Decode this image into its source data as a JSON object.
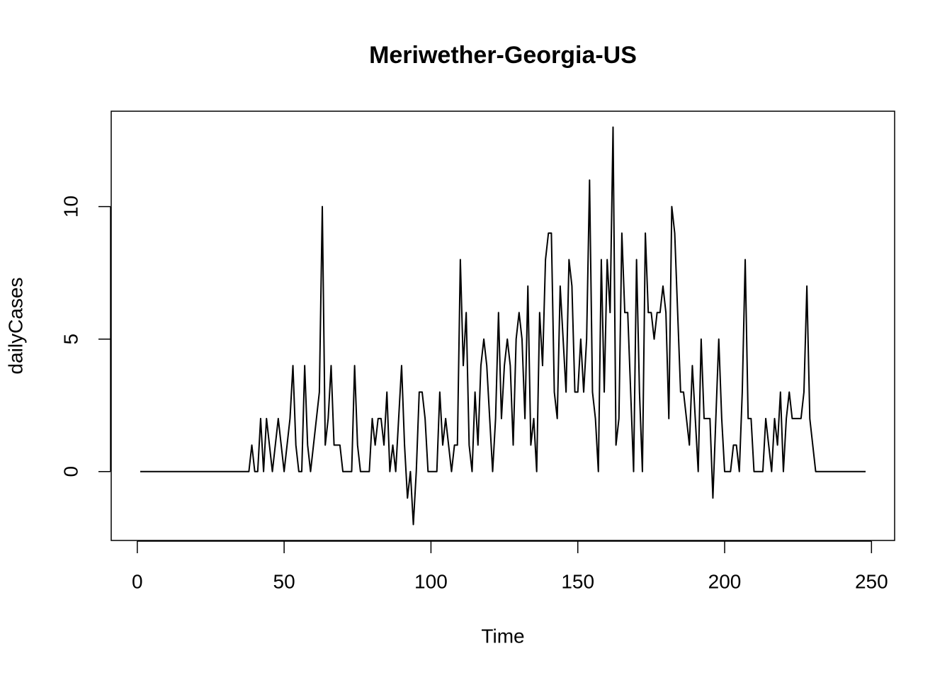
{
  "chart_data": {
    "type": "line",
    "title": "Meriwether-Georgia-US",
    "x_label": "Time",
    "y_label": "dailyCases",
    "x": [
      1,
      2,
      3,
      4,
      5,
      6,
      7,
      8,
      9,
      10,
      11,
      12,
      13,
      14,
      15,
      16,
      17,
      18,
      19,
      20,
      21,
      22,
      23,
      24,
      25,
      26,
      27,
      28,
      29,
      30,
      31,
      32,
      33,
      34,
      35,
      36,
      37,
      38,
      39,
      40,
      41,
      42,
      43,
      44,
      45,
      46,
      47,
      48,
      49,
      50,
      51,
      52,
      53,
      54,
      55,
      56,
      57,
      58,
      59,
      60,
      61,
      62,
      63,
      64,
      65,
      66,
      67,
      68,
      69,
      70,
      71,
      72,
      73,
      74,
      75,
      76,
      77,
      78,
      79,
      80,
      81,
      82,
      83,
      84,
      85,
      86,
      87,
      88,
      89,
      90,
      91,
      92,
      93,
      94,
      95,
      96,
      97,
      98,
      99,
      100,
      101,
      102,
      103,
      104,
      105,
      106,
      107,
      108,
      109,
      110,
      111,
      112,
      113,
      114,
      115,
      116,
      117,
      118,
      119,
      120,
      121,
      122,
      123,
      124,
      125,
      126,
      127,
      128,
      129,
      130,
      131,
      132,
      133,
      134,
      135,
      136,
      137,
      138,
      139,
      140,
      141,
      142,
      143,
      144,
      145,
      146,
      147,
      148,
      149,
      150,
      151,
      152,
      153,
      154,
      155,
      156,
      157,
      158,
      159,
      160,
      161,
      162,
      163,
      164,
      165,
      166,
      167,
      168,
      169,
      170,
      171,
      172,
      173,
      174,
      175,
      176,
      177,
      178,
      179,
      180,
      181,
      182,
      183,
      184,
      185,
      186,
      187,
      188,
      189,
      190,
      191,
      192,
      193,
      194,
      195,
      196,
      197,
      198,
      199,
      200,
      201,
      202,
      203,
      204,
      205,
      206,
      207,
      208,
      209,
      210,
      211,
      212,
      213,
      214,
      215,
      216,
      217,
      218,
      219,
      220,
      221,
      222,
      223,
      224,
      225,
      226,
      227,
      228,
      229,
      230,
      231,
      232,
      233,
      234,
      235,
      236,
      237,
      238,
      239,
      240,
      241,
      242,
      243,
      244,
      245,
      246,
      247,
      248
    ],
    "values": [
      0,
      0,
      0,
      0,
      0,
      0,
      0,
      0,
      0,
      0,
      0,
      0,
      0,
      0,
      0,
      0,
      0,
      0,
      0,
      0,
      0,
      0,
      0,
      0,
      0,
      0,
      0,
      0,
      0,
      0,
      0,
      0,
      0,
      0,
      0,
      0,
      0,
      0,
      1,
      0,
      0,
      2,
      0,
      2,
      1,
      0,
      1,
      2,
      1,
      0,
      1,
      2,
      4,
      1,
      0,
      0,
      4,
      1,
      0,
      1,
      2,
      3,
      10,
      1,
      2,
      4,
      1,
      1,
      1,
      0,
      0,
      0,
      0,
      4,
      1,
      0,
      0,
      0,
      0,
      2,
      1,
      2,
      2,
      1,
      3,
      0,
      1,
      0,
      2,
      4,
      1,
      -1,
      0,
      -2,
      0,
      3,
      3,
      2,
      0,
      0,
      0,
      0,
      3,
      1,
      2,
      1,
      0,
      1,
      1,
      8,
      4,
      6,
      1,
      0,
      3,
      1,
      4,
      5,
      4,
      2,
      0,
      2,
      6,
      2,
      4,
      5,
      4,
      1,
      5,
      6,
      5,
      2,
      7,
      1,
      2,
      0,
      6,
      4,
      8,
      9,
      9,
      3,
      2,
      7,
      5,
      3,
      8,
      7,
      3,
      3,
      5,
      3,
      5,
      11,
      3,
      2,
      0,
      8,
      3,
      8,
      6,
      13,
      1,
      2,
      9,
      6,
      6,
      3,
      0,
      8,
      3,
      0,
      9,
      6,
      6,
      5,
      6,
      6,
      7,
      6,
      2,
      10,
      9,
      6,
      3,
      3,
      2,
      1,
      4,
      2,
      0,
      5,
      2,
      2,
      2,
      -1,
      2,
      5,
      2,
      0,
      0,
      0,
      1,
      1,
      0,
      3,
      8,
      2,
      2,
      0,
      0,
      0,
      0,
      2,
      1,
      0,
      2,
      1,
      3,
      0,
      2,
      3,
      2,
      2,
      2,
      2,
      3,
      7,
      2,
      1,
      0,
      0,
      0,
      0,
      0,
      0,
      0,
      0,
      0,
      0,
      0,
      0,
      0,
      0,
      0,
      0,
      0,
      0
    ],
    "color": "#000000",
    "xlim": [
      -8.88,
      257.88
    ],
    "ylim": [
      -2.6,
      13.6
    ],
    "xticks": [
      0,
      50,
      100,
      150,
      200,
      250
    ],
    "yticks": [
      0,
      5,
      10
    ]
  }
}
